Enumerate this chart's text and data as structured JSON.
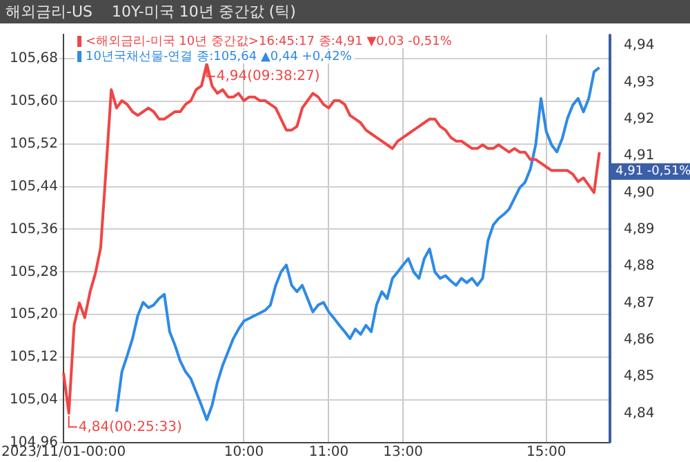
{
  "chart_data": {
    "type": "line",
    "title": "해외금리-US    10Y-미국 10년 중간값 (틱)",
    "categories": [
      "2023/11/01-00:00",
      null,
      null,
      null,
      null,
      null,
      null,
      null,
      null,
      null,
      null,
      null,
      null,
      null,
      null,
      null,
      null,
      null,
      null,
      null,
      null,
      null,
      null,
      null,
      null,
      null,
      null,
      null,
      null,
      null,
      null,
      null,
      null,
      null,
      "10:00",
      null,
      null,
      null,
      null,
      null,
      null,
      null,
      null,
      null,
      null,
      null,
      null,
      null,
      null,
      null,
      "11:00",
      null,
      null,
      null,
      null,
      null,
      null,
      null,
      null,
      null,
      null,
      null,
      null,
      null,
      "13:00",
      null,
      null,
      null,
      null,
      null,
      null,
      null,
      null,
      null,
      null,
      null,
      null,
      null,
      null,
      null,
      null,
      null,
      null,
      null,
      null,
      null,
      null,
      null,
      null,
      null,
      null,
      "15:00",
      null,
      null,
      null,
      null,
      null,
      null,
      null,
      null,
      null,
      null,
      null,
      null
    ],
    "series": [
      {
        "name": "<해외금리-미국 10년 중간값>16:45:17 종:4,91 ▼0,03 -0,51%",
        "color": "#f04545",
        "axis": "y2",
        "values": [
          4.851,
          4.84,
          4.864,
          4.87,
          4.866,
          4.873,
          4.878,
          4.885,
          4.906,
          4.928,
          4.923,
          4.925,
          4.924,
          4.922,
          4.921,
          4.922,
          4.923,
          4.922,
          4.92,
          4.92,
          4.921,
          4.922,
          4.922,
          4.924,
          4.925,
          4.928,
          4.929,
          4.935,
          4.929,
          4.927,
          4.928,
          4.926,
          4.926,
          4.927,
          4.925,
          4.926,
          4.926,
          4.925,
          4.925,
          4.924,
          4.923,
          4.92,
          4.917,
          4.917,
          4.918,
          4.923,
          4.925,
          4.927,
          4.926,
          4.924,
          4.923,
          4.925,
          4.925,
          4.924,
          4.921,
          4.92,
          4.919,
          4.917,
          4.916,
          4.915,
          4.914,
          4.913,
          4.912,
          4.914,
          4.915,
          4.916,
          4.917,
          4.918,
          4.919,
          4.92,
          4.92,
          4.918,
          4.917,
          4.915,
          4.914,
          4.914,
          4.913,
          4.912,
          4.912,
          4.913,
          4.912,
          4.912,
          4.913,
          4.912,
          4.911,
          4.912,
          4.911,
          4.911,
          4.909,
          4.909,
          4.908,
          4.907,
          4.906,
          4.906,
          4.906,
          4.906,
          4.905,
          4.903,
          4.904,
          4.902,
          4.9,
          4.911,
          null,
          null
        ]
      },
      {
        "name": "10년국채선물-연결 종:105,64 ▲0,44 +0,42%",
        "color": "#2e8ae6",
        "axis": "y",
        "values": [
          null,
          null,
          null,
          null,
          null,
          null,
          null,
          null,
          null,
          null,
          105.018,
          105.093,
          105.123,
          105.155,
          105.198,
          105.223,
          105.213,
          105.218,
          105.23,
          105.238,
          105.168,
          105.143,
          105.113,
          105.093,
          105.08,
          105.055,
          105.03,
          105.003,
          105.03,
          105.073,
          105.105,
          105.13,
          105.155,
          105.173,
          105.188,
          105.193,
          105.198,
          105.203,
          105.208,
          105.218,
          105.255,
          105.28,
          105.293,
          105.255,
          105.243,
          105.255,
          105.23,
          105.205,
          105.218,
          105.223,
          105.205,
          105.193,
          105.18,
          105.168,
          105.155,
          105.173,
          105.163,
          105.18,
          105.168,
          105.218,
          105.243,
          105.23,
          105.268,
          105.28,
          105.293,
          105.305,
          105.28,
          105.268,
          105.305,
          105.323,
          105.28,
          105.268,
          105.273,
          105.263,
          105.255,
          105.268,
          105.26,
          105.268,
          105.255,
          105.268,
          105.338,
          105.368,
          105.38,
          105.388,
          105.398,
          105.418,
          105.438,
          105.448,
          105.473,
          105.518,
          105.605,
          105.543,
          105.518,
          105.505,
          105.53,
          105.568,
          105.593,
          105.605,
          105.58,
          105.605,
          105.655,
          105.663,
          null,
          null
        ]
      }
    ],
    "ylim": [
      104.96,
      105.725
    ],
    "yticks": [
      {
        "value": 104.96,
        "label": "104,96"
      },
      {
        "value": 105.04,
        "label": "105,04"
      },
      {
        "value": 105.12,
        "label": "105,12"
      },
      {
        "value": 105.2,
        "label": "105,20"
      },
      {
        "value": 105.28,
        "label": "105,28"
      },
      {
        "value": 105.36,
        "label": "105,36"
      },
      {
        "value": 105.44,
        "label": "105,44"
      },
      {
        "value": 105.52,
        "label": "105,52"
      },
      {
        "value": 105.6,
        "label": "105,60"
      },
      {
        "value": 105.68,
        "label": "105,68"
      }
    ],
    "y2lim": [
      4.832,
      4.943
    ],
    "y2ticks": [
      {
        "value": 4.84,
        "label": "4,84"
      },
      {
        "value": 4.85,
        "label": "4,85"
      },
      {
        "value": 4.86,
        "label": "4,86"
      },
      {
        "value": 4.87,
        "label": "4,87"
      },
      {
        "value": 4.88,
        "label": "4,88"
      },
      {
        "value": 4.89,
        "label": "4,89"
      },
      {
        "value": 4.9,
        "label": "4,90"
      },
      {
        "value": 4.91,
        "label": "4,91"
      },
      {
        "value": 4.92,
        "label": "4,92"
      },
      {
        "value": 4.93,
        "label": "4,93"
      },
      {
        "value": 4.94,
        "label": "4,94"
      }
    ],
    "annotations": [
      "4,94(09:38:27)",
      "4,84(00:25:33)",
      "4,91 -0,51%"
    ],
    "grid": true,
    "legend": "top left",
    "marker": "none",
    "line_style": "solid"
  }
}
